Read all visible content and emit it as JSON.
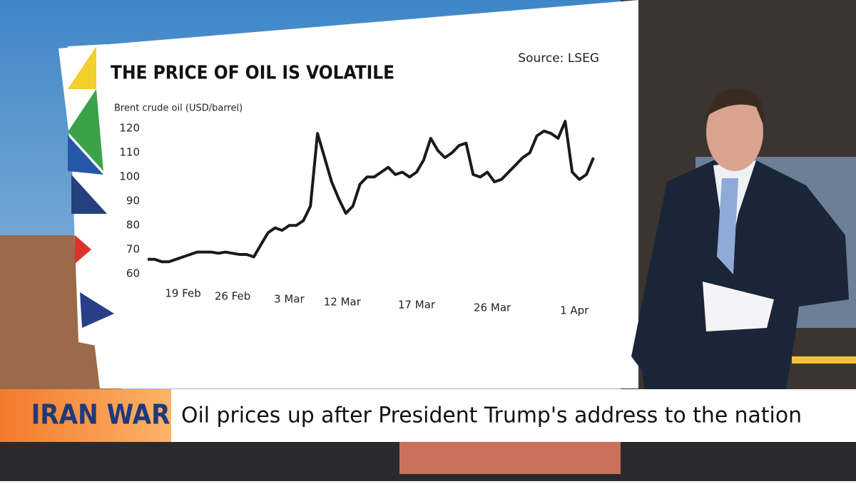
{
  "chart_data": {
    "type": "line",
    "title": "THE PRICE OF OIL IS VOLATILE",
    "subtitle": "Brent crude oil (USD/barrel)",
    "source": "Source: LSEG",
    "series": [
      {
        "name": "Brent crude oil",
        "color": "#1a1a1a",
        "values": [
          68,
          68,
          67,
          67,
          68,
          69,
          70,
          71,
          71,
          71,
          70.5,
          71,
          70.5,
          70,
          70,
          69,
          74,
          79,
          81,
          80,
          82,
          82,
          84,
          90,
          120,
          110,
          100,
          93,
          87,
          90,
          99,
          102,
          102,
          104,
          106,
          103,
          104,
          102,
          104,
          109,
          118,
          113,
          110,
          112,
          115,
          116,
          103,
          102,
          104,
          100,
          101,
          104,
          107,
          110,
          112,
          119,
          121,
          120,
          118,
          125,
          104,
          101,
          103,
          110
        ]
      }
    ],
    "xlim": [
      0,
      63
    ],
    "xticks": [
      {
        "value": 5,
        "label": "19 Feb"
      },
      {
        "value": 12,
        "label": "26 Feb"
      },
      {
        "value": 20,
        "label": "3 Mar"
      },
      {
        "value": 27.5,
        "label": "12 Mar"
      },
      {
        "value": 38,
        "label": "17 Mar"
      },
      {
        "value": 48.7,
        "label": "26 Mar"
      },
      {
        "value": 60.3,
        "label": "1 Apr"
      }
    ],
    "ylim": [
      60,
      128
    ],
    "yticks": [
      60,
      70,
      80,
      90,
      100,
      110,
      120
    ],
    "grid": false
  },
  "banner": {
    "tag": "IRAN WAR",
    "headline": "Oil prices up after President Trump's address to the nation"
  }
}
